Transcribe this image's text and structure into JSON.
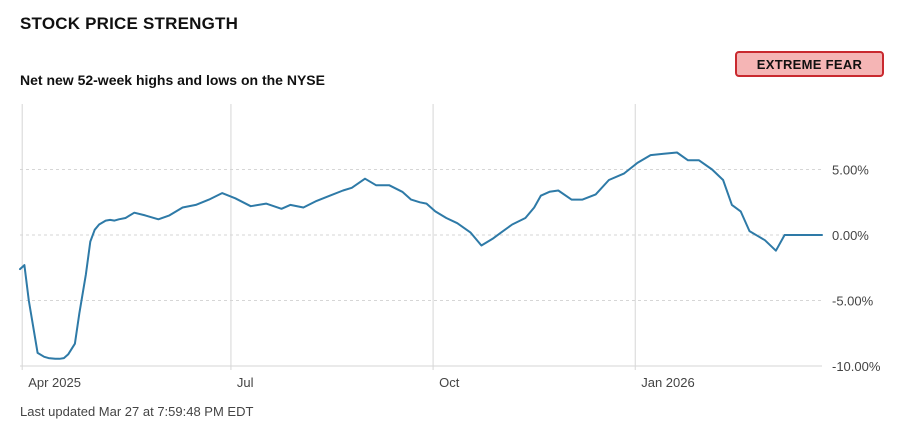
{
  "header": {
    "title": "STOCK PRICE STRENGTH",
    "subtitle": "Net new 52-week highs and lows on the NYSE"
  },
  "badge": {
    "label": "EXTREME FEAR",
    "border_color": "#c9292f",
    "background_color": "#f5b5b5"
  },
  "footer": {
    "last_updated": "Last updated Mar 27 at 7:59:48 PM EDT"
  },
  "colors": {
    "line": "#2e7aa7",
    "grid": "#d6d6d6",
    "tick_text": "#444444"
  },
  "chart_data": {
    "type": "line",
    "title": "STOCK PRICE STRENGTH",
    "subtitle": "Net new 52-week highs and lows on the NYSE",
    "xlabel": "",
    "ylabel": "",
    "x_tick_labels": [
      "Apr 2025",
      "Jul",
      "Oct",
      "Jan 2026"
    ],
    "x_tick_dates": [
      "2025-03-28",
      "2025-07-01",
      "2025-10-01",
      "2026-01-01"
    ],
    "y_tick_labels": [
      "5.00%",
      "0.00%",
      "-5.00%",
      "-10.00%"
    ],
    "y_tick_values": [
      5,
      0,
      -5,
      -10
    ],
    "ylim": [
      -10,
      10
    ],
    "xlim": [
      "2025-03-27",
      "2026-03-27"
    ],
    "y_axis_position": "right",
    "grid": true,
    "legend": "none",
    "series": [
      {
        "x": [
          "2025-03-27",
          "2025-03-29",
          "2025-03-31",
          "2025-04-02",
          "2025-04-04",
          "2025-04-07",
          "2025-04-09",
          "2025-04-12",
          "2025-04-14",
          "2025-04-16",
          "2025-04-18",
          "2025-04-21",
          "2025-04-23",
          "2025-04-26",
          "2025-04-28",
          "2025-04-30",
          "2025-05-02",
          "2025-05-05",
          "2025-05-07",
          "2025-05-09",
          "2025-05-11",
          "2025-05-14",
          "2025-05-18",
          "2025-05-23",
          "2025-05-29",
          "2025-06-03",
          "2025-06-09",
          "2025-06-15",
          "2025-06-21",
          "2025-06-27",
          "2025-07-03",
          "2025-07-10",
          "2025-07-17",
          "2025-07-24",
          "2025-07-28",
          "2025-08-03",
          "2025-08-09",
          "2025-08-15",
          "2025-08-21",
          "2025-08-25",
          "2025-08-31",
          "2025-09-05",
          "2025-09-11",
          "2025-09-17",
          "2025-09-21",
          "2025-09-25",
          "2025-09-28",
          "2025-10-02",
          "2025-10-07",
          "2025-10-12",
          "2025-10-18",
          "2025-10-23",
          "2025-10-28",
          "2025-11-01",
          "2025-11-06",
          "2025-11-12",
          "2025-11-16",
          "2025-11-19",
          "2025-11-23",
          "2025-11-27",
          "2025-12-03",
          "2025-12-08",
          "2025-12-14",
          "2025-12-20",
          "2025-12-27",
          "2026-01-02",
          "2026-01-08",
          "2026-01-14",
          "2026-01-20",
          "2026-01-25",
          "2026-01-30",
          "2026-02-05",
          "2026-02-10",
          "2026-02-14",
          "2026-02-18",
          "2026-02-22",
          "2026-02-26",
          "2026-03-01",
          "2026-03-06",
          "2026-03-10",
          "2026-03-14",
          "2026-03-18",
          "2026-03-22",
          "2026-03-25",
          "2026-03-27"
        ],
        "values": [
          -2.6,
          -2.3,
          -5.0,
          -7.0,
          -9.0,
          -9.3,
          -9.4,
          -9.45,
          -9.45,
          -9.4,
          -9.1,
          -8.3,
          -6.0,
          -3.0,
          -0.5,
          0.4,
          0.8,
          1.1,
          1.15,
          1.1,
          1.2,
          1.3,
          1.7,
          1.5,
          1.2,
          1.5,
          2.1,
          2.3,
          2.7,
          3.2,
          2.8,
          2.2,
          2.4,
          2.0,
          2.3,
          2.1,
          2.6,
          3.0,
          3.4,
          3.6,
          4.3,
          3.8,
          3.8,
          3.3,
          2.7,
          2.5,
          2.4,
          1.8,
          1.3,
          0.9,
          0.2,
          -0.8,
          -0.3,
          0.2,
          0.8,
          1.3,
          2.1,
          3.0,
          3.3,
          3.4,
          2.7,
          2.7,
          3.1,
          4.2,
          4.7,
          5.5,
          6.1,
          6.2,
          6.3,
          5.7,
          5.7,
          5.0,
          4.2,
          2.3,
          1.8,
          0.3,
          -0.1,
          -0.4,
          -1.2,
          0,
          0,
          0,
          0,
          0,
          0
        ]
      }
    ]
  }
}
